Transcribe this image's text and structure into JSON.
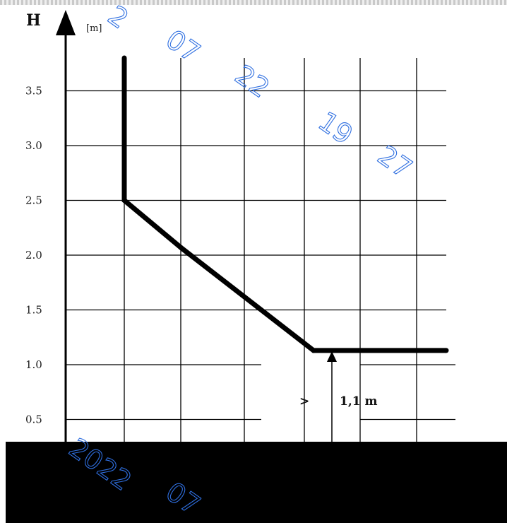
{
  "chart_data": {
    "type": "line",
    "ylabel": "H",
    "y_unit": "[m]",
    "ylim": [
      0.25,
      3.95
    ],
    "y_ticks": [
      "0.5",
      "1.0",
      "1.5",
      "2.0",
      "2.5",
      "3.0",
      "3.5"
    ],
    "grid": true,
    "series": [
      {
        "points": [
          {
            "x": 0,
            "y": 3.8
          },
          {
            "x": 0,
            "y": 2.5
          },
          {
            "x": 1,
            "y": 2.07
          },
          {
            "x": 3.35,
            "y": 1.13
          },
          {
            "x": 5.7,
            "y": 1.13
          }
        ]
      }
    ],
    "annotations": [
      {
        "symbol": ">",
        "text": "1,1 m"
      }
    ]
  },
  "watermark": {
    "top_right": [
      "07",
      "22",
      "19",
      "27"
    ],
    "top_left": "2",
    "bottom": [
      "2022",
      "07"
    ]
  },
  "colors": {
    "line": "#000000",
    "grid": "#000000",
    "watermark": "#2f6fe0",
    "redaction": "#000000"
  }
}
